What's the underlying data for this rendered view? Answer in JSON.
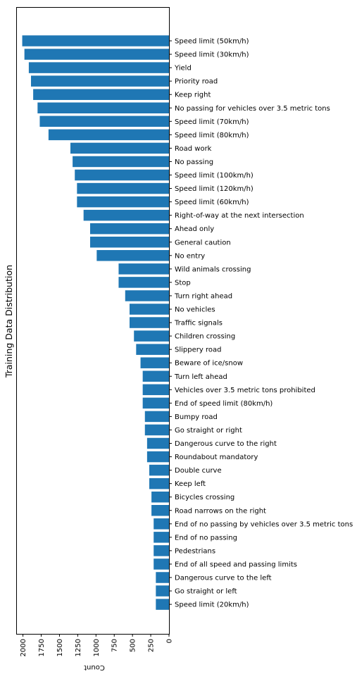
{
  "chart_data": {
    "type": "bar",
    "orientation": "horizontal",
    "x_axis_inverted": true,
    "tick_labels_rotated": true,
    "title": "",
    "ylabel": "Training Data Distribution",
    "xlabel": "Count",
    "xlabel_rendered": "upside-down",
    "xlim": [
      0,
      2100
    ],
    "x_ticks": [
      0,
      250,
      500,
      750,
      1000,
      1250,
      1500,
      1750,
      2000
    ],
    "grid": false,
    "bar_color": "#1f77b4",
    "categories": [
      "Speed limit (50km/h)",
      "Speed limit (30km/h)",
      "Yield",
      "Priority road",
      "Keep right",
      "No passing for vehicles over 3.5 metric tons",
      "Speed limit (70km/h)",
      "Speed limit (80km/h)",
      "Road work",
      "No passing",
      "Speed limit (100km/h)",
      "Speed limit (120km/h)",
      "Speed limit (60km/h)",
      "Right-of-way at the next intersection",
      "Ahead only",
      "General caution",
      "No entry",
      "Wild animals crossing",
      "Stop",
      "Turn right ahead",
      "No vehicles",
      "Traffic signals",
      "Children crossing",
      "Slippery road",
      "Beware of ice/snow",
      "Turn left ahead",
      "Vehicles over 3.5 metric tons prohibited",
      "End of speed limit (80km/h)",
      "Bumpy road",
      "Go straight or right",
      "Dangerous curve to the right",
      "Roundabout mandatory",
      "Double curve",
      "Keep left",
      "Bicycles crossing",
      "Road narrows on the right",
      "End of no passing by vehicles over 3.5 metric tons",
      "End of no passing",
      "Pedestrians",
      "End of all speed and passing limits",
      "Dangerous curve to the left",
      "Go straight or left",
      "Speed limit (20km/h)"
    ],
    "values": [
      2010,
      1980,
      1920,
      1890,
      1860,
      1800,
      1770,
      1650,
      1350,
      1320,
      1290,
      1260,
      1260,
      1170,
      1080,
      1080,
      990,
      690,
      690,
      600,
      540,
      540,
      480,
      450,
      390,
      360,
      360,
      360,
      330,
      330,
      300,
      300,
      270,
      270,
      240,
      240,
      210,
      210,
      210,
      210,
      180,
      180,
      180
    ]
  }
}
